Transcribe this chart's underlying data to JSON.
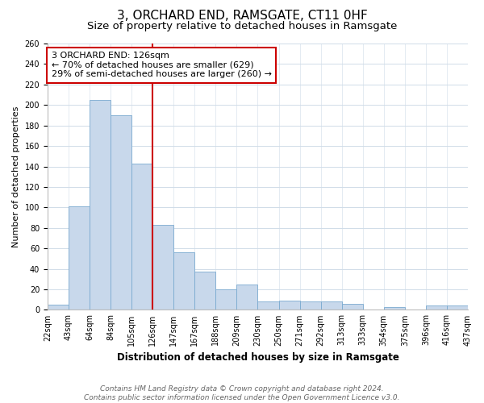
{
  "title": "3, ORCHARD END, RAMSGATE, CT11 0HF",
  "subtitle": "Size of property relative to detached houses in Ramsgate",
  "xlabel": "Distribution of detached houses by size in Ramsgate",
  "ylabel": "Number of detached properties",
  "bar_labels": [
    "22sqm",
    "43sqm",
    "64sqm",
    "84sqm",
    "105sqm",
    "126sqm",
    "147sqm",
    "167sqm",
    "188sqm",
    "209sqm",
    "230sqm",
    "250sqm",
    "271sqm",
    "292sqm",
    "313sqm",
    "333sqm",
    "354sqm",
    "375sqm",
    "396sqm",
    "416sqm",
    "437sqm"
  ],
  "bar_values": [
    5,
    101,
    205,
    190,
    143,
    83,
    56,
    37,
    20,
    25,
    8,
    9,
    8,
    8,
    6,
    0,
    3,
    0,
    4,
    4
  ],
  "bar_color": "#c8d8eb",
  "bar_edge_color": "#7aaad0",
  "vline_x": 5,
  "vline_color": "#cc0000",
  "annotation_line1": "3 ORCHARD END: 126sqm",
  "annotation_line2": "← 70% of detached houses are smaller (629)",
  "annotation_line3": "29% of semi-detached houses are larger (260) →",
  "annotation_box_color": "#ffffff",
  "annotation_box_edge_color": "#cc0000",
  "ylim": [
    0,
    260
  ],
  "yticks": [
    0,
    20,
    40,
    60,
    80,
    100,
    120,
    140,
    160,
    180,
    200,
    220,
    240,
    260
  ],
  "footer_text": "Contains HM Land Registry data © Crown copyright and database right 2024.\nContains public sector information licensed under the Open Government Licence v3.0.",
  "background_color": "#ffffff",
  "grid_color": "#d0dce8",
  "title_fontsize": 11,
  "subtitle_fontsize": 9.5,
  "xlabel_fontsize": 8.5,
  "ylabel_fontsize": 8,
  "tick_fontsize": 7,
  "annotation_fontsize": 8,
  "footer_fontsize": 6.5
}
